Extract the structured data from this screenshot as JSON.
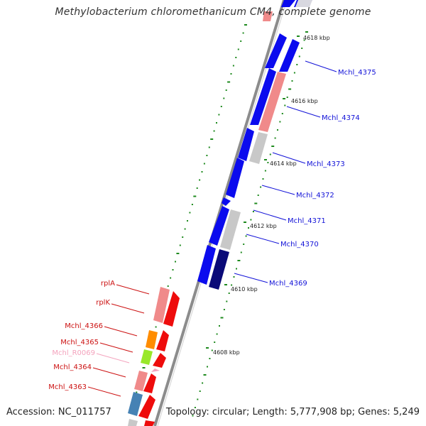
{
  "title": "Methylobacterium chloromethanicum CM4, complete genome",
  "footer": {
    "accession": "Accession: NC_011757",
    "topology": "Topology: circular; Length: 5,777,908 bp; Genes: 5,249"
  },
  "ticks": [
    {
      "label": "4618 kbp"
    },
    {
      "label": "4616 kbp"
    },
    {
      "label": "4614 kbp"
    },
    {
      "label": "4612 kbp"
    },
    {
      "label": "4610 kbp"
    },
    {
      "label": "4608 kbp"
    }
  ],
  "genes_right": [
    {
      "label": "Mchl_4375"
    },
    {
      "label": "Mchl_4374"
    },
    {
      "label": "Mchl_4373"
    },
    {
      "label": "Mchl_4372"
    },
    {
      "label": "Mchl_4371"
    },
    {
      "label": "Mchl_4370"
    },
    {
      "label": "Mchl_4369"
    }
  ],
  "genes_left": [
    {
      "label": "rplA"
    },
    {
      "label": "rplK"
    },
    {
      "label": "Mchl_4366"
    },
    {
      "label": "Mchl_4365"
    },
    {
      "label": "Mchl_R0069"
    },
    {
      "label": "Mchl_4364"
    },
    {
      "label": "Mchl_4363"
    }
  ],
  "colors": {
    "blue_gene": "#0b0bee",
    "navy_gene": "#0a0a78",
    "red_gene": "#ee0c0c",
    "pink_track": "#f08a8a",
    "grey_track": "#c8c8c8",
    "orange_track": "#ff8c00",
    "green_track": "#99e82a",
    "steel_track": "#4682b4",
    "rna_label": "#f4a3bd",
    "tick_green": "#1e8a1e",
    "backbone": "#8c8c8c"
  }
}
